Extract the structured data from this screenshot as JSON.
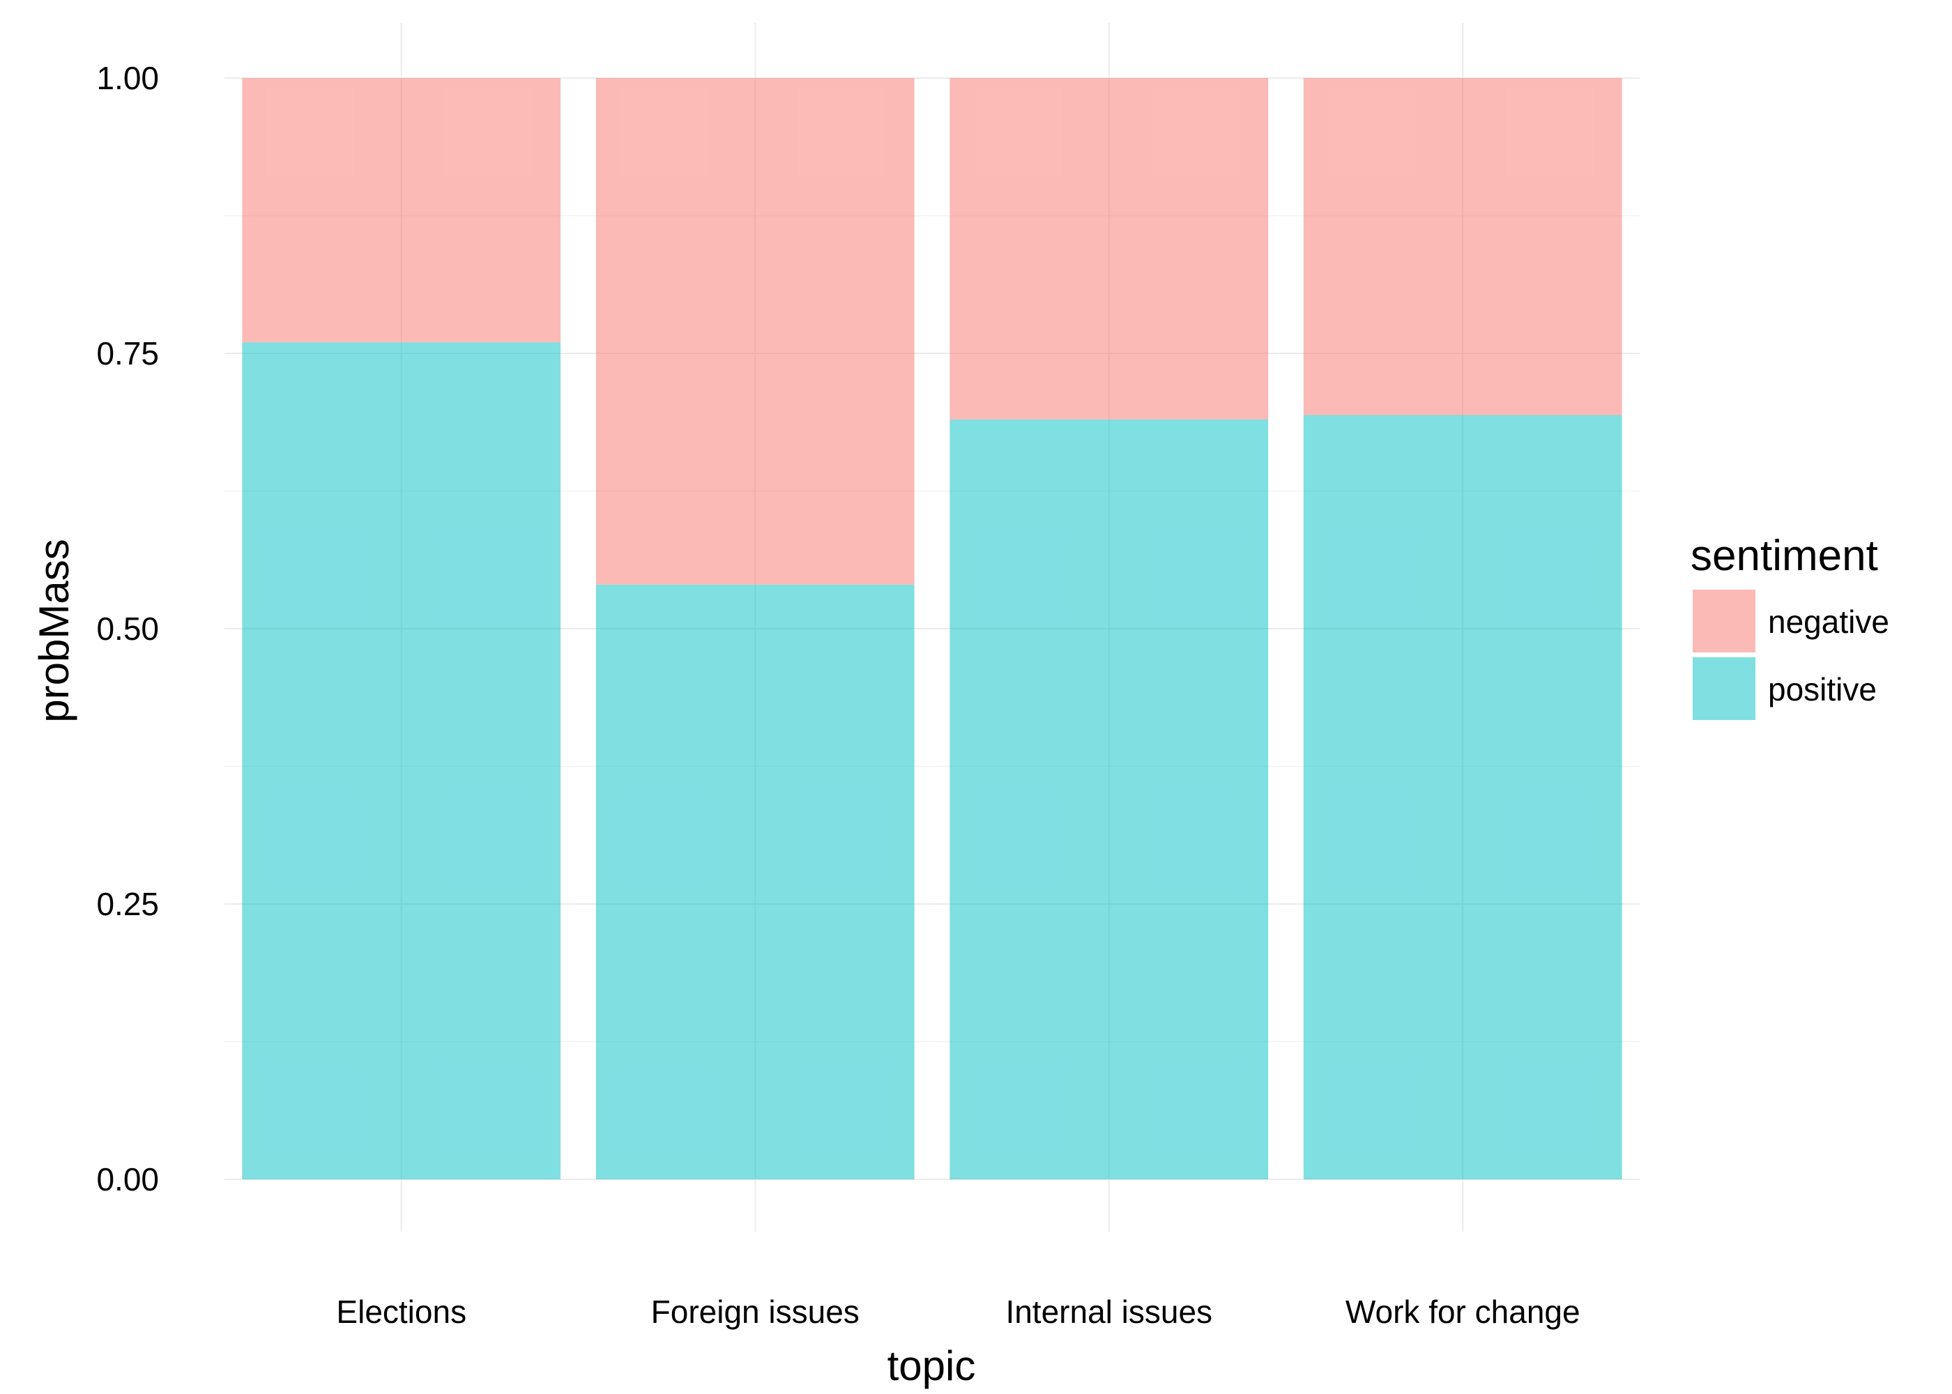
{
  "chart_data": {
    "type": "bar",
    "stacked": true,
    "title": "",
    "xlabel": "topic",
    "ylabel": "probMass",
    "categories": [
      "Elections",
      "Foreign issues",
      "Internal issues",
      "Work for change"
    ],
    "series": [
      {
        "name": "negative",
        "values": [
          0.24,
          0.46,
          0.31,
          0.306
        ],
        "color": "#F8766D"
      },
      {
        "name": "positive",
        "values": [
          0.76,
          0.54,
          0.69,
          0.694
        ],
        "color": "#00BFC4"
      }
    ],
    "ylim": [
      0,
      1
    ],
    "yticks": [
      "0.00",
      "0.25",
      "0.50",
      "0.75",
      "1.00"
    ],
    "grid": true,
    "legend": {
      "title": "sentiment",
      "position": "right",
      "entries": [
        "negative",
        "positive"
      ]
    },
    "bar_opacity": 0.5
  }
}
